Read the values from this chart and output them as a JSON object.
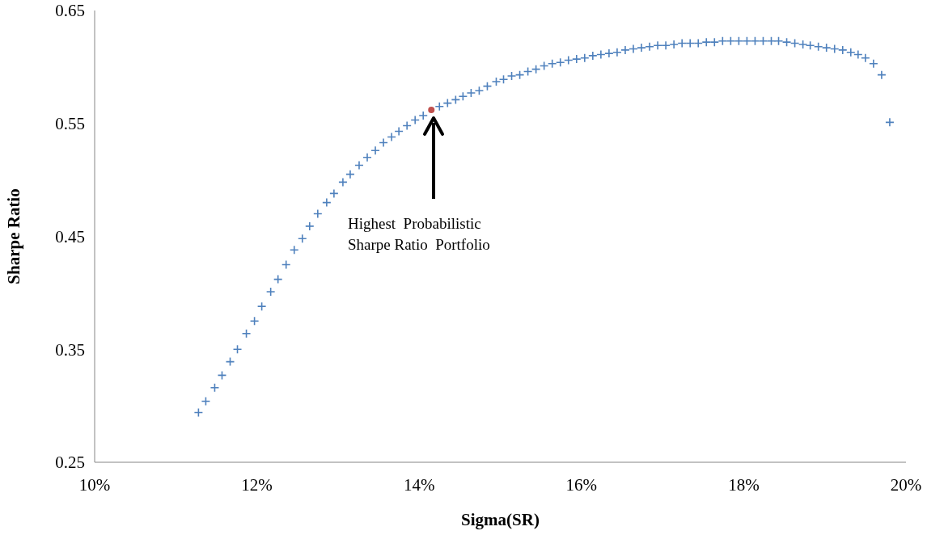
{
  "chart_data": {
    "type": "scatter",
    "xlabel": "Sigma(SR)",
    "ylabel": "Sharpe Ratio",
    "xlim": [
      10,
      20
    ],
    "xticks": [
      {
        "value": 10,
        "label": "10%"
      },
      {
        "value": 12,
        "label": "12%"
      },
      {
        "value": 14,
        "label": "14%"
      },
      {
        "value": 16,
        "label": "16%"
      },
      {
        "value": 18,
        "label": "18%"
      },
      {
        "value": 20,
        "label": "20%"
      }
    ],
    "ylim": [
      0.25,
      0.65
    ],
    "yticks": [
      0.25,
      0.35,
      0.45,
      0.55,
      0.65
    ],
    "grid": false,
    "series": [
      {
        "color": "#4f81bd",
        "marker": "cross",
        "x": [
          11.28,
          11.37,
          11.48,
          11.57,
          11.67,
          11.76,
          11.87,
          11.97,
          12.06,
          12.17,
          12.26,
          12.36,
          12.46,
          12.56,
          12.65,
          12.75,
          12.86,
          12.95,
          13.06,
          13.15,
          13.26,
          13.36,
          13.46,
          13.56,
          13.66,
          13.75,
          13.85,
          13.95,
          14.05,
          14.25,
          14.35,
          14.45,
          14.54,
          14.64,
          14.74,
          14.84,
          14.95,
          15.04,
          15.14,
          15.24,
          15.34,
          15.44,
          15.54,
          15.64,
          15.74,
          15.84,
          15.94,
          16.04,
          16.14,
          16.24,
          16.34,
          16.44,
          16.54,
          16.64,
          16.74,
          16.84,
          16.94,
          17.04,
          17.14,
          17.24,
          17.34,
          17.44,
          17.54,
          17.64,
          17.74,
          17.84,
          17.94,
          18.04,
          18.14,
          18.24,
          18.34,
          18.43,
          18.53,
          18.63,
          18.73,
          18.82,
          18.92,
          19.02,
          19.12,
          19.22,
          19.32,
          19.41,
          19.5,
          19.6,
          19.7,
          19.8
        ],
        "values": [
          0.294,
          0.304,
          0.316,
          0.327,
          0.339,
          0.35,
          0.364,
          0.375,
          0.388,
          0.401,
          0.412,
          0.425,
          0.438,
          0.448,
          0.459,
          0.47,
          0.48,
          0.488,
          0.498,
          0.505,
          0.513,
          0.52,
          0.526,
          0.533,
          0.538,
          0.543,
          0.548,
          0.553,
          0.557,
          0.565,
          0.568,
          0.571,
          0.574,
          0.577,
          0.579,
          0.583,
          0.587,
          0.589,
          0.592,
          0.593,
          0.596,
          0.598,
          0.601,
          0.603,
          0.604,
          0.606,
          0.607,
          0.608,
          0.61,
          0.611,
          0.612,
          0.613,
          0.615,
          0.616,
          0.617,
          0.618,
          0.619,
          0.619,
          0.62,
          0.621,
          0.621,
          0.621,
          0.622,
          0.622,
          0.623,
          0.623,
          0.623,
          0.623,
          0.623,
          0.623,
          0.623,
          0.623,
          0.622,
          0.621,
          0.62,
          0.619,
          0.618,
          0.617,
          0.616,
          0.615,
          0.613,
          0.611,
          0.608,
          0.603,
          0.593,
          0.551
        ]
      },
      {
        "color": "#c0504d",
        "marker": "circle",
        "x": [
          14.15
        ],
        "values": [
          0.562
        ]
      }
    ],
    "annotations": [
      "Highest  Probabilistic\nSharpe Ratio  Portfolio"
    ]
  }
}
